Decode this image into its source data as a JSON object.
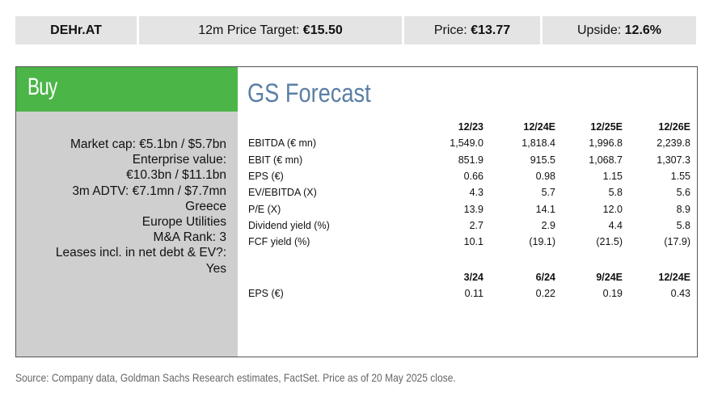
{
  "header": {
    "ticker": "DEHr.AT",
    "target_label": "12m Price Target: ",
    "target_value": "€15.50",
    "price_label": "Price: ",
    "price_value": "€13.77",
    "upside_label": "Upside: ",
    "upside_value": "12.6%"
  },
  "rating": "Buy",
  "details": [
    "Market cap: €5.1bn / $5.7bn",
    "Enterprise value:",
    "€10.3bn / $11.1bn",
    "3m ADTV: €7.1mn / $7.7mn",
    "Greece",
    "Europe Utilities",
    "M&A Rank: 3",
    "Leases incl. in net debt & EV?:",
    "Yes"
  ],
  "forecast": {
    "title": "GS Forecast",
    "annual": {
      "columns": [
        "12/23",
        "12/24E",
        "12/25E",
        "12/26E"
      ],
      "rows": [
        {
          "label": "EBITDA (€ mn)",
          "values": [
            "1,549.0",
            "1,818.4",
            "1,996.8",
            "2,239.8"
          ]
        },
        {
          "label": "EBIT (€ mn)",
          "values": [
            "851.9",
            "915.5",
            "1,068.7",
            "1,307.3"
          ]
        },
        {
          "label": "EPS (€)",
          "values": [
            "0.66",
            "0.98",
            "1.15",
            "1.55"
          ]
        },
        {
          "label": "EV/EBITDA (X)",
          "values": [
            "4.3",
            "5.7",
            "5.8",
            "5.6"
          ]
        },
        {
          "label": "P/E (X)",
          "values": [
            "13.9",
            "14.1",
            "12.0",
            "8.9"
          ]
        },
        {
          "label": "Dividend yield (%)",
          "values": [
            "2.7",
            "2.9",
            "4.4",
            "5.8"
          ]
        },
        {
          "label": "FCF yield (%)",
          "values": [
            "10.1",
            "(19.1)",
            "(21.5)",
            "(17.9)"
          ]
        }
      ]
    },
    "quarterly": {
      "columns": [
        "3/24",
        "6/24",
        "9/24E",
        "12/24E"
      ],
      "rows": [
        {
          "label": "EPS (€)",
          "values": [
            "0.11",
            "0.22",
            "0.19",
            "0.43"
          ]
        }
      ]
    }
  },
  "source": "Source: Company data, Goldman Sachs Research estimates, FactSet. Price as of 20 May 2025 close."
}
